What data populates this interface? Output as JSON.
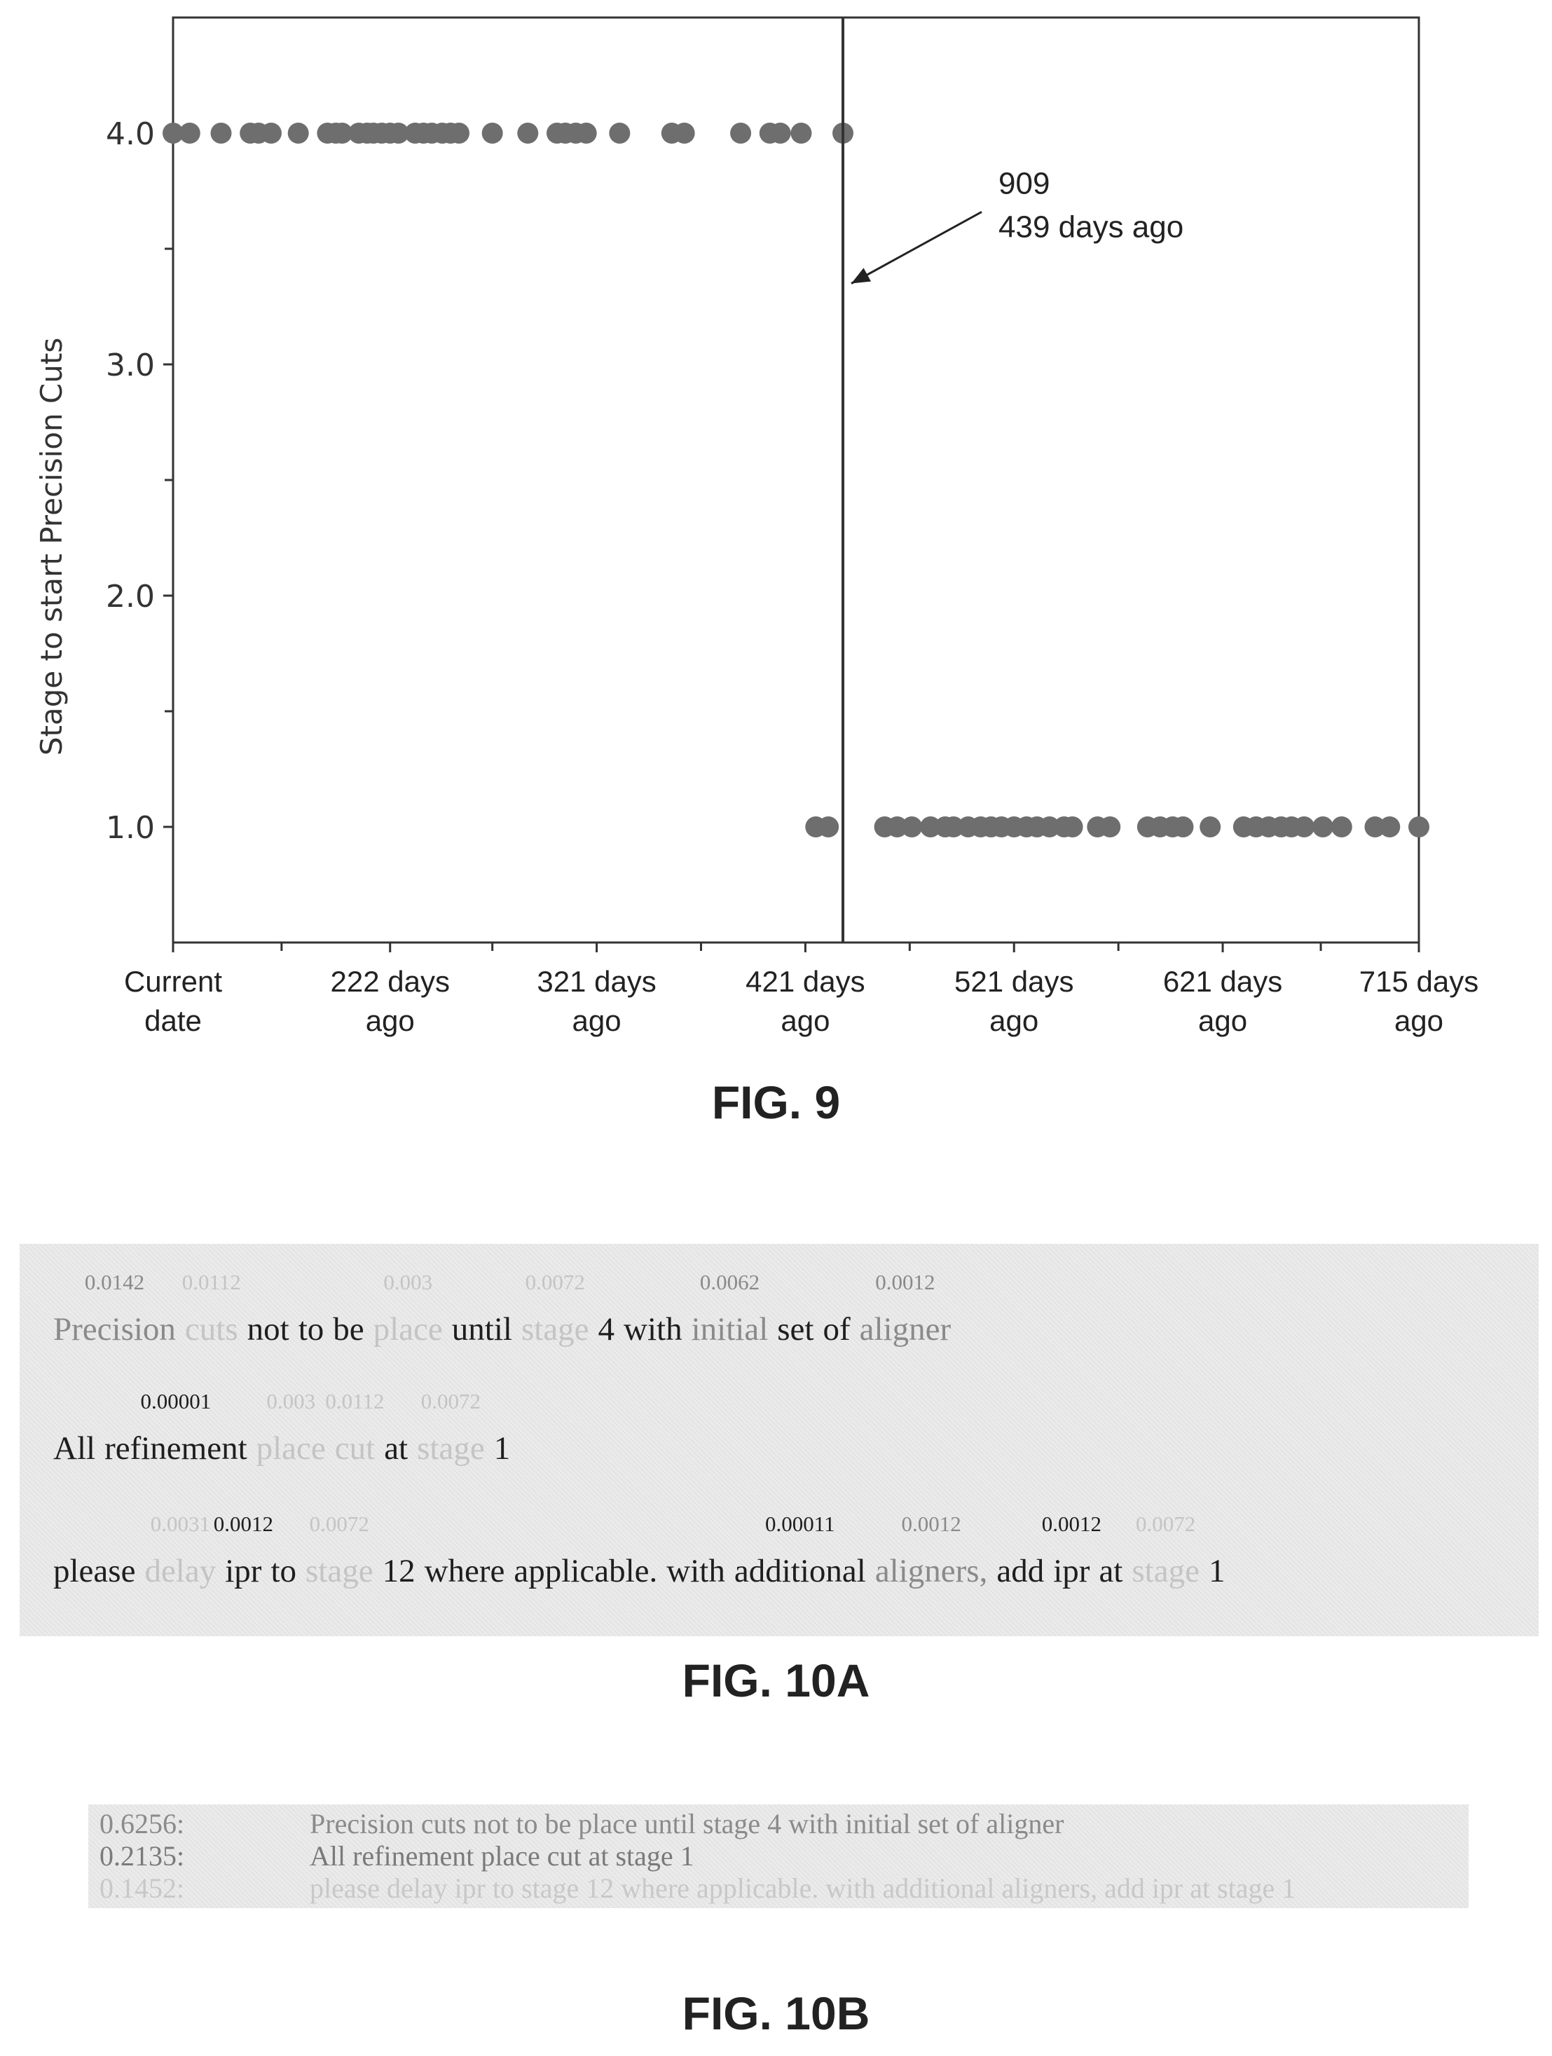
{
  "fig9": {
    "label": "FIG. 9",
    "chart_data": {
      "type": "scatter",
      "ylabel": "Stage to start Precision Cuts",
      "xlabel": "",
      "x_ticks": [
        "Current date",
        "222 days ago",
        "321 days ago",
        "421 days ago",
        "521 days ago",
        "621 days ago",
        "715 days ago"
      ],
      "y_ticks": [
        "1.0",
        "2.0",
        "3.0",
        "4.0"
      ],
      "ylim": [
        0.5,
        4.5
      ],
      "grid": false,
      "point_color": "#6e6e6e",
      "series": [
        {
          "values": [
            {
              "x": 118,
              "y": 4
            },
            {
              "x": 126,
              "y": 4
            },
            {
              "x": 141,
              "y": 4
            },
            {
              "x": 155,
              "y": 4
            },
            {
              "x": 159,
              "y": 4
            },
            {
              "x": 165,
              "y": 4
            },
            {
              "x": 178,
              "y": 4
            },
            {
              "x": 192,
              "y": 4
            },
            {
              "x": 196,
              "y": 4
            },
            {
              "x": 199,
              "y": 4
            },
            {
              "x": 207,
              "y": 4
            },
            {
              "x": 211,
              "y": 4
            },
            {
              "x": 214,
              "y": 4
            },
            {
              "x": 218,
              "y": 4
            },
            {
              "x": 222,
              "y": 4
            },
            {
              "x": 226,
              "y": 4
            },
            {
              "x": 234,
              "y": 4
            },
            {
              "x": 238,
              "y": 4
            },
            {
              "x": 242,
              "y": 4
            },
            {
              "x": 247,
              "y": 4
            },
            {
              "x": 251,
              "y": 4
            },
            {
              "x": 255,
              "y": 4
            },
            {
              "x": 271,
              "y": 4
            },
            {
              "x": 288,
              "y": 4
            },
            {
              "x": 302,
              "y": 4
            },
            {
              "x": 306,
              "y": 4
            },
            {
              "x": 311,
              "y": 4
            },
            {
              "x": 316,
              "y": 4
            },
            {
              "x": 332,
              "y": 4
            },
            {
              "x": 357,
              "y": 4
            },
            {
              "x": 363,
              "y": 4
            },
            {
              "x": 390,
              "y": 4
            },
            {
              "x": 404,
              "y": 4
            },
            {
              "x": 409,
              "y": 4
            },
            {
              "x": 419,
              "y": 4
            },
            {
              "x": 439,
              "y": 4
            },
            {
              "x": 426,
              "y": 1
            },
            {
              "x": 432,
              "y": 1
            },
            {
              "x": 459,
              "y": 1
            },
            {
              "x": 465,
              "y": 1
            },
            {
              "x": 472,
              "y": 1
            },
            {
              "x": 481,
              "y": 1
            },
            {
              "x": 488,
              "y": 1
            },
            {
              "x": 492,
              "y": 1
            },
            {
              "x": 499,
              "y": 1
            },
            {
              "x": 505,
              "y": 1
            },
            {
              "x": 510,
              "y": 1
            },
            {
              "x": 515,
              "y": 1
            },
            {
              "x": 521,
              "y": 1
            },
            {
              "x": 527,
              "y": 1
            },
            {
              "x": 532,
              "y": 1
            },
            {
              "x": 538,
              "y": 1
            },
            {
              "x": 545,
              "y": 1
            },
            {
              "x": 549,
              "y": 1
            },
            {
              "x": 561,
              "y": 1
            },
            {
              "x": 567,
              "y": 1
            },
            {
              "x": 585,
              "y": 1
            },
            {
              "x": 591,
              "y": 1
            },
            {
              "x": 597,
              "y": 1
            },
            {
              "x": 602,
              "y": 1
            },
            {
              "x": 615,
              "y": 1
            },
            {
              "x": 631,
              "y": 1
            },
            {
              "x": 637,
              "y": 1
            },
            {
              "x": 643,
              "y": 1
            },
            {
              "x": 649,
              "y": 1
            },
            {
              "x": 654,
              "y": 1
            },
            {
              "x": 660,
              "y": 1
            },
            {
              "x": 669,
              "y": 1
            },
            {
              "x": 678,
              "y": 1
            },
            {
              "x": 694,
              "y": 1
            },
            {
              "x": 701,
              "y": 1
            },
            {
              "x": 715,
              "y": 1
            }
          ]
        }
      ],
      "vline": {
        "x": 439
      },
      "annotation": {
        "line1": "909",
        "line2": "439 days ago",
        "arrow_y": 3.35
      }
    }
  },
  "fig10a": {
    "label": "FIG. 10A",
    "lines": [
      {
        "words": [
          {
            "text": "Precision",
            "score": "0.0142",
            "tone": "mid"
          },
          {
            "text": "cuts",
            "score": "0.0112",
            "tone": "light"
          },
          {
            "text": "not",
            "score": "",
            "tone": "dark"
          },
          {
            "text": "to",
            "score": "",
            "tone": "dark"
          },
          {
            "text": "be",
            "score": "",
            "tone": "dark"
          },
          {
            "text": "place",
            "score": "0.003",
            "tone": "light"
          },
          {
            "text": "until",
            "score": "",
            "tone": "dark"
          },
          {
            "text": "stage",
            "score": "0.0072",
            "tone": "light"
          },
          {
            "text": "4",
            "score": "",
            "tone": "dark"
          },
          {
            "text": "with",
            "score": "",
            "tone": "dark"
          },
          {
            "text": "initial",
            "score": "0.0062",
            "tone": "mid"
          },
          {
            "text": "set",
            "score": "",
            "tone": "dark"
          },
          {
            "text": "of",
            "score": "",
            "tone": "dark"
          },
          {
            "text": "aligner",
            "score": "0.0012",
            "tone": "mid"
          }
        ]
      },
      {
        "words": [
          {
            "text": "All",
            "score": "",
            "tone": "dark"
          },
          {
            "text": "refinement",
            "score": "0.00001",
            "tone": "dark"
          },
          {
            "text": "place",
            "score": "0.003",
            "tone": "light"
          },
          {
            "text": "cut",
            "score": "0.0112",
            "tone": "light"
          },
          {
            "text": "at",
            "score": "",
            "tone": "dark"
          },
          {
            "text": "stage",
            "score": "0.0072",
            "tone": "light"
          },
          {
            "text": "1",
            "score": "",
            "tone": "dark"
          }
        ]
      },
      {
        "words": [
          {
            "text": "please",
            "score": "",
            "tone": "dark"
          },
          {
            "text": "delay",
            "score": "0.0031",
            "tone": "light"
          },
          {
            "text": "ipr",
            "score": "0.0012",
            "tone": "dark"
          },
          {
            "text": "to",
            "score": "",
            "tone": "dark"
          },
          {
            "text": "stage",
            "score": "0.0072",
            "tone": "light"
          },
          {
            "text": "12",
            "score": "",
            "tone": "dark"
          },
          {
            "text": "where",
            "score": "",
            "tone": "dark"
          },
          {
            "text": "applicable.",
            "score": "",
            "tone": "dark"
          },
          {
            "text": "with",
            "score": "",
            "tone": "dark"
          },
          {
            "text": "additional",
            "score": "0.00011",
            "tone": "dark"
          },
          {
            "text": "aligners,",
            "score": "0.0012",
            "tone": "mid"
          },
          {
            "text": "add",
            "score": "",
            "tone": "dark"
          },
          {
            "text": "ipr",
            "score": "0.0012",
            "tone": "dark"
          },
          {
            "text": "at",
            "score": "",
            "tone": "dark"
          },
          {
            "text": "stage",
            "score": "0.0072",
            "tone": "light"
          },
          {
            "text": "1",
            "score": "",
            "tone": "dark"
          }
        ]
      }
    ]
  },
  "fig10b": {
    "label": "FIG. 10B",
    "rows": [
      {
        "score": "0.6256:",
        "text": "Precision cuts not to be place until stage 4 with initial set of aligner",
        "color": "#8a8a8a"
      },
      {
        "score": "0.2135:",
        "text": "All refinement place cut at stage 1",
        "color": "#7a7a7a"
      },
      {
        "score": "0.1452:",
        "text": "please delay ipr to stage 12 where applicable. with additional aligners, add ipr at stage 1",
        "color": "#c8c8c8"
      }
    ]
  }
}
